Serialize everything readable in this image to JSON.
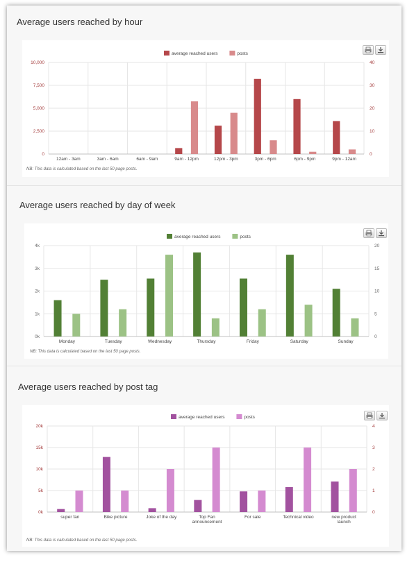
{
  "chart_data": [
    {
      "id": "hour",
      "type": "bar",
      "title": "Average users reached by hour",
      "categories": [
        "12am - 3am",
        "3am - 6am",
        "6am - 9am",
        "9am - 12pm",
        "12pm - 3pm",
        "3pm - 6pm",
        "6pm - 9pm",
        "9pm - 12am"
      ],
      "series": [
        {
          "name": "average reached users",
          "axis": "left",
          "color": "#b5474a",
          "values": [
            0,
            0,
            0,
            650,
            3100,
            8200,
            6000,
            3600
          ]
        },
        {
          "name": "posts",
          "axis": "right",
          "color": "#d88a8b",
          "values": [
            0,
            0,
            0,
            23,
            18,
            6,
            1,
            2
          ]
        }
      ],
      "yticks_left": [
        "0",
        "2,500",
        "5,000",
        "7,500",
        "10,000"
      ],
      "yticks_right": [
        "0",
        "10",
        "20",
        "30",
        "40"
      ],
      "ylim_left": [
        0,
        10000
      ],
      "ylim_right": [
        0,
        40
      ],
      "axis_color": "#a33a3a",
      "grid": true,
      "legend_position": "top-center",
      "note": "NB: This data is calculated based on the last 50 page posts."
    },
    {
      "id": "week",
      "type": "bar",
      "title": "Average users reached by day of week",
      "categories": [
        "Monday",
        "Tuesday",
        "Wednesday",
        "Thursday",
        "Friday",
        "Saturday",
        "Sunday"
      ],
      "series": [
        {
          "name": "average reached users",
          "axis": "left",
          "color": "#528035",
          "values": [
            1600,
            2500,
            2550,
            3700,
            2550,
            3600,
            2100
          ]
        },
        {
          "name": "posts",
          "axis": "right",
          "color": "#9cc285",
          "values": [
            5,
            6,
            18,
            4,
            6,
            7,
            4
          ]
        }
      ],
      "yticks_left": [
        "0k",
        "1k",
        "2k",
        "3k",
        "4k"
      ],
      "yticks_right": [
        "0",
        "5",
        "10",
        "15",
        "20"
      ],
      "ylim_left": [
        0,
        4000
      ],
      "ylim_right": [
        0,
        20
      ],
      "axis_color": "#666666",
      "grid": true,
      "legend_position": "top-center",
      "note": "NB: This data is calculated based on the last 50 page posts."
    },
    {
      "id": "tag",
      "type": "bar",
      "title": "Average users reached by post tag",
      "categories": [
        "super fan",
        "Bike picture",
        "Joke of the day",
        "Top Fan announcement",
        "For sale",
        "Technical video",
        "new product launch"
      ],
      "series": [
        {
          "name": "average reached users",
          "axis": "left",
          "color": "#a2529f",
          "values": [
            700,
            12800,
            900,
            2800,
            4800,
            5800,
            7100
          ]
        },
        {
          "name": "posts",
          "axis": "right",
          "color": "#d48bd0",
          "values": [
            1,
            1,
            2,
            3,
            1,
            3,
            2
          ]
        }
      ],
      "yticks_left": [
        "0k",
        "5k",
        "10k",
        "15k",
        "20k"
      ],
      "yticks_right": [
        "0",
        "1",
        "2",
        "3",
        "4"
      ],
      "ylim_left": [
        0,
        20000
      ],
      "ylim_right": [
        0,
        4
      ],
      "axis_color": "#a33a3a",
      "grid": true,
      "legend_position": "top-center",
      "note": "NB: This data is calculated based on the last 50 page posts."
    }
  ],
  "toolbar": {
    "print_icon": "printer-icon",
    "download_icon": "download-icon"
  }
}
